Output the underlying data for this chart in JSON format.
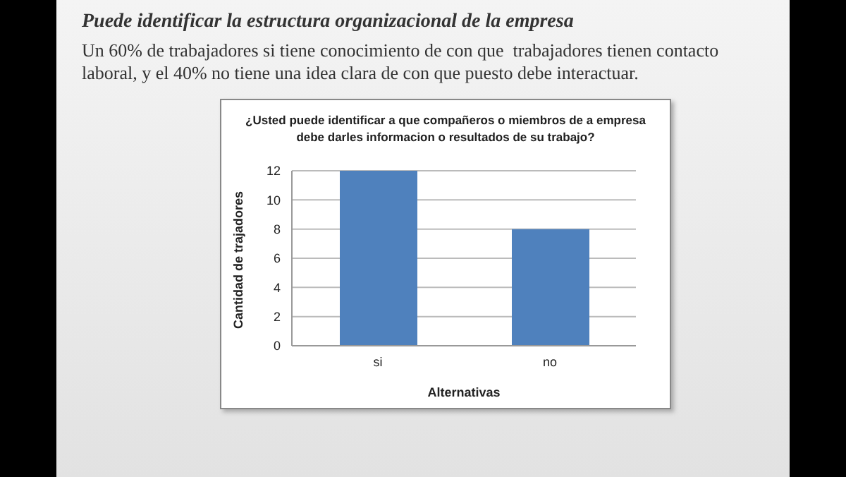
{
  "chart_data": {
    "type": "bar",
    "title": "Puede identificar la estructura organizacional de la empresa",
    "subtitle": "Un 60% de trabajadores si tiene conocimiento de con que  trabajadores tienen contacto laboral, y el 40% no tiene una idea clara de con que puesto debe interactuar.",
    "annotations": [
      "¿Usted puede identificar a que compañeros o miembros de a empresa debe darles informacion o resultados de su trabajo?"
    ],
    "xlabel": "Alternativas",
    "ylabel": "Cantidad de trajadores",
    "categories": [
      "si",
      "no"
    ],
    "values": [
      12,
      8
    ],
    "color": "#4f81bd",
    "ylim": [
      0,
      12
    ],
    "yticks": [
      0,
      2,
      4,
      6,
      8,
      10,
      12
    ],
    "grid": "y",
    "legend": false
  }
}
